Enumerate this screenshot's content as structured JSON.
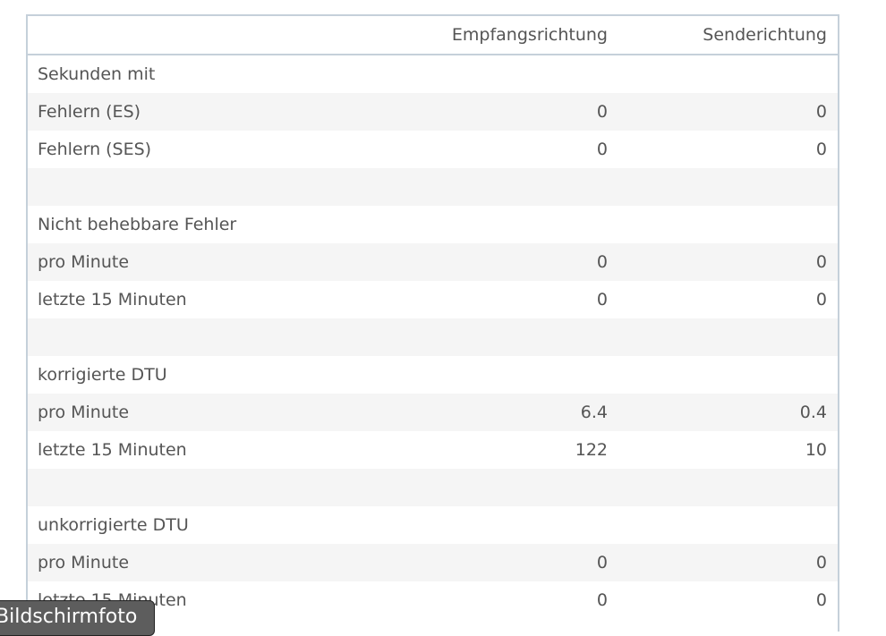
{
  "headers": [
    "",
    "Empfangsrichtung",
    "Senderichtung"
  ],
  "rows": [
    [
      "Sekunden mit",
      "",
      ""
    ],
    [
      "Fehlern (ES)",
      "0",
      "0"
    ],
    [
      "Fehlern (SES)",
      "0",
      "0"
    ],
    [
      "",
      "",
      ""
    ],
    [
      "Nicht behebbare Fehler",
      "",
      ""
    ],
    [
      "pro Minute",
      "0",
      "0"
    ],
    [
      "letzte 15 Minuten",
      "0",
      "0"
    ],
    [
      "",
      "",
      ""
    ],
    [
      "korrigierte DTU",
      "",
      ""
    ],
    [
      "pro Minute",
      "6.4",
      "0.4"
    ],
    [
      "letzte 15 Minuten",
      "122",
      "10"
    ],
    [
      "",
      "",
      ""
    ],
    [
      "unkorrigierte DTU",
      "",
      ""
    ],
    [
      "pro Minute",
      "0",
      "0"
    ],
    [
      "letzte 15 Minuten",
      "0",
      "0"
    ]
  ],
  "tooltip": "Bildschirmfoto"
}
